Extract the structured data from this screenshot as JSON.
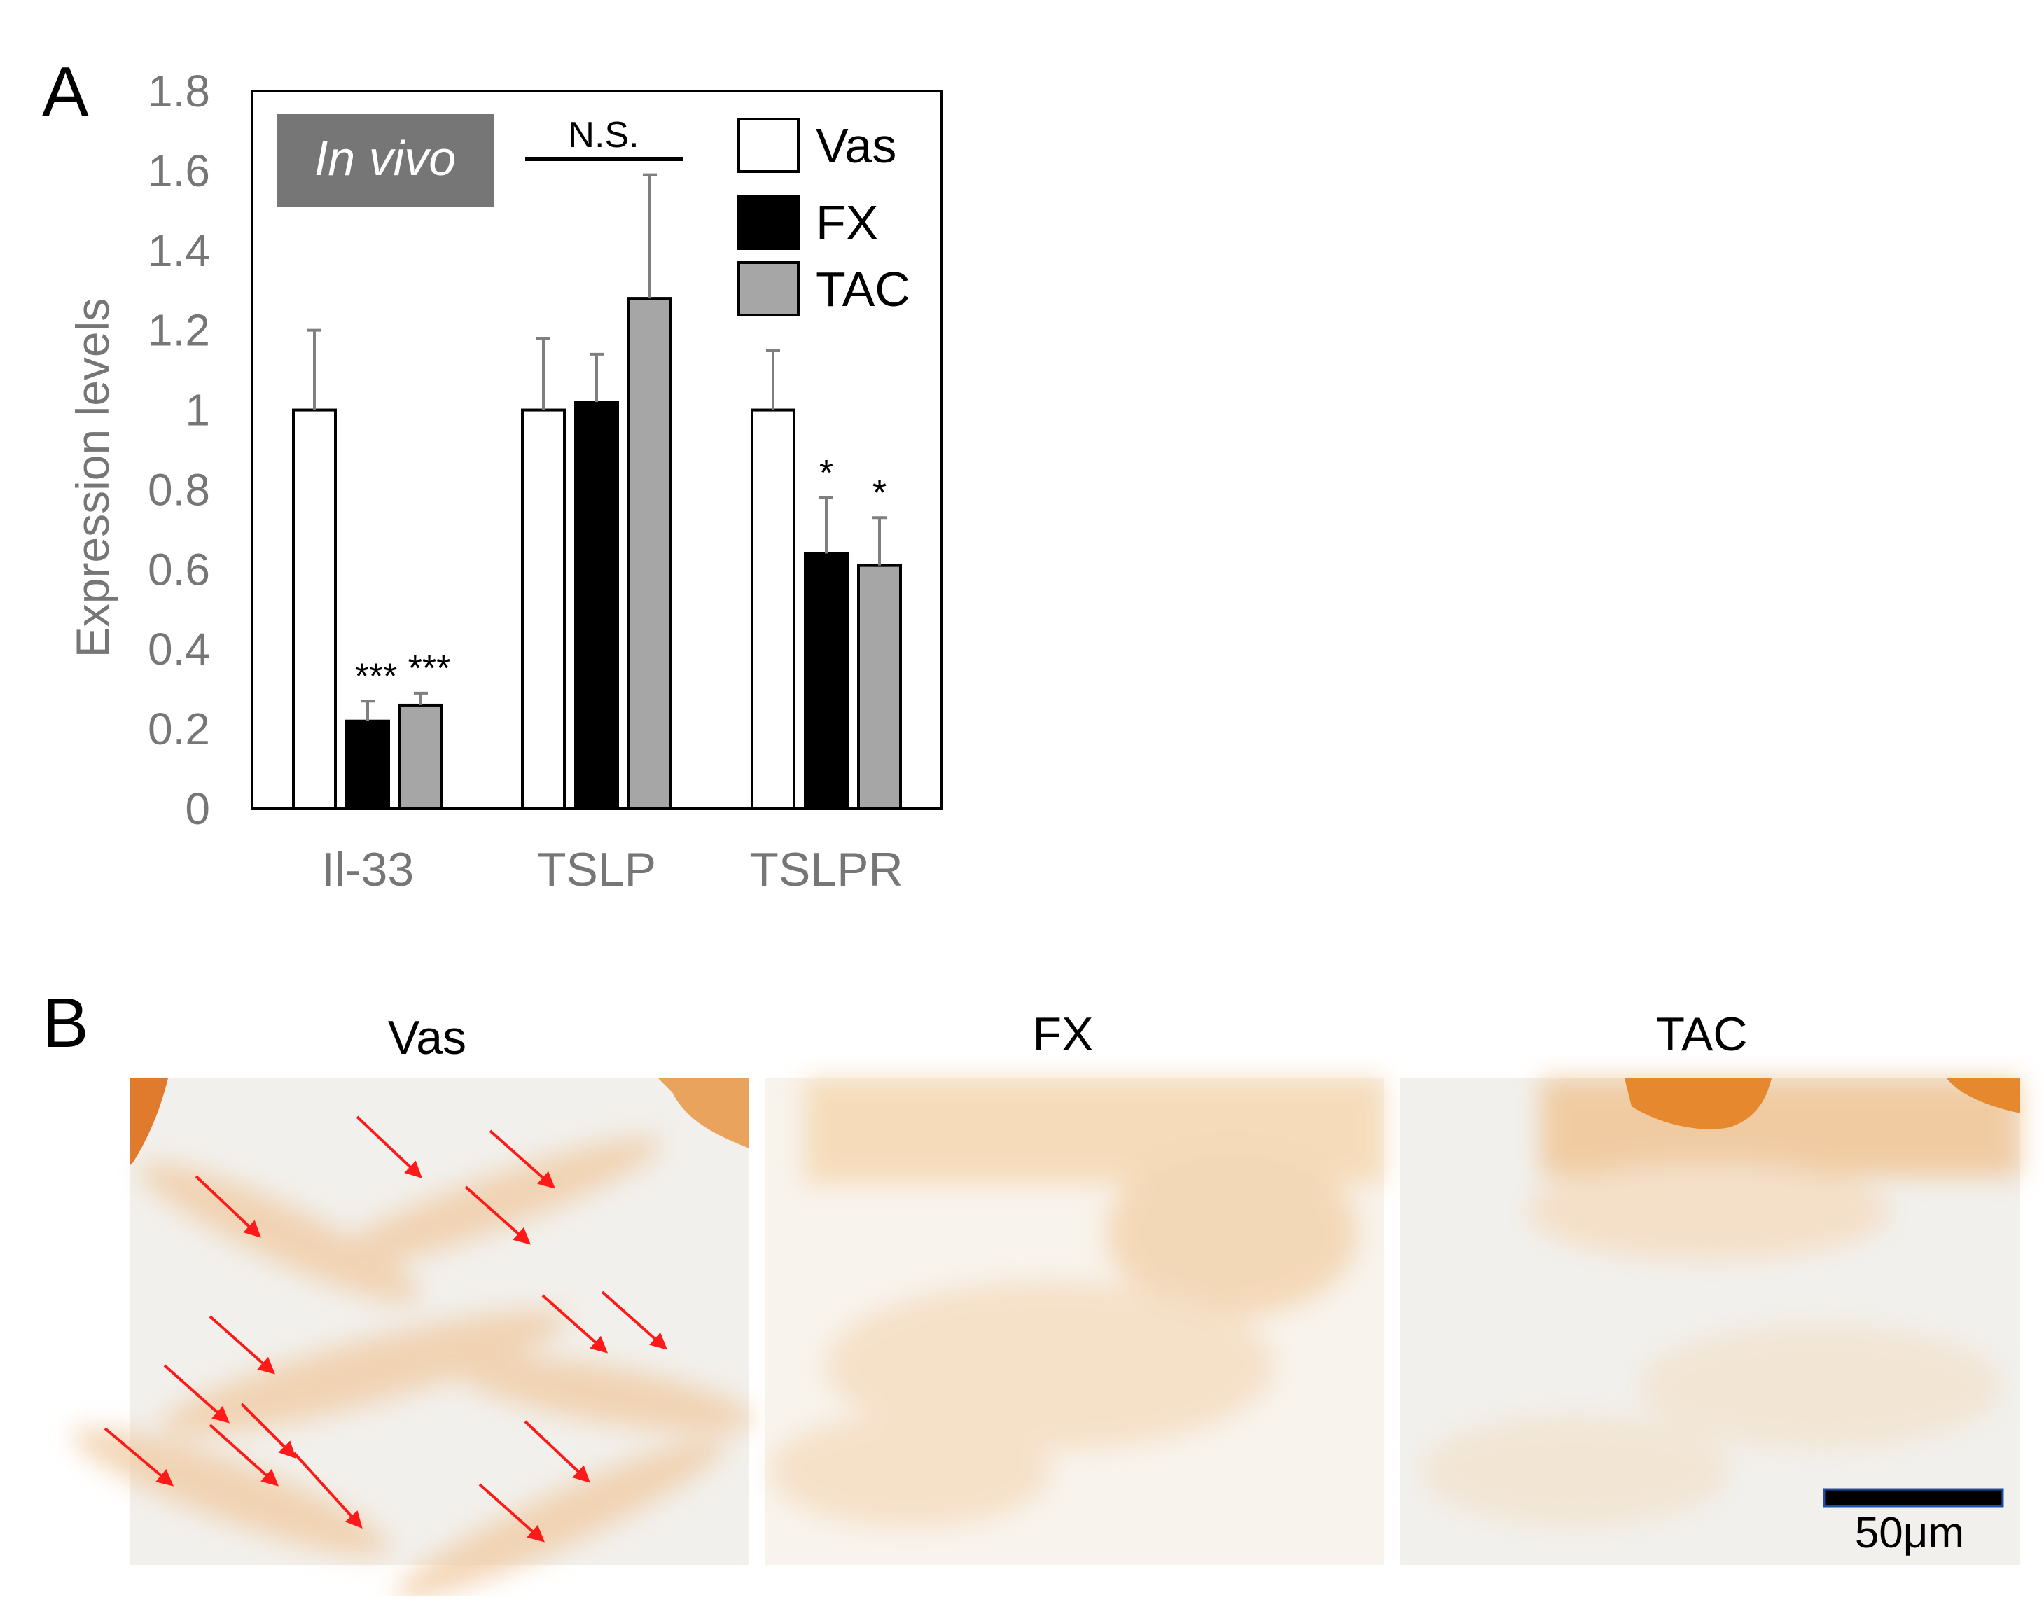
{
  "panel_a": {
    "label": "A",
    "badge": "In vivo",
    "significance_bracket": "N.S."
  },
  "panel_b": {
    "label": "B",
    "titles": [
      "Vas",
      "FX",
      "TAC"
    ],
    "scale_bar": "50μm"
  },
  "colors": {
    "vas": "#ffffff",
    "fx": "#000000",
    "tac": "#a6a6a6",
    "axis_text": "#767676",
    "badge_bg": "#767676",
    "arrow": "#ff1a1a",
    "stain": "#e89a4e"
  },
  "chart_data": {
    "type": "bar",
    "title": "",
    "xlabel": "",
    "ylabel": "Expression levels",
    "ylim": [
      0,
      1.8
    ],
    "yticks": [
      "0",
      "0.2",
      "0.4",
      "0.6",
      "0.8",
      "1",
      "1.2",
      "1.4",
      "1.6",
      "1.8"
    ],
    "categories": [
      "Il-33",
      "TSLP",
      "TSLPR"
    ],
    "legend_position": "top-right",
    "grid": false,
    "series": [
      {
        "name": "Vas",
        "values": [
          1.0,
          1.0,
          1.0
        ],
        "errors": [
          0.2,
          0.18,
          0.15
        ],
        "stars": [
          "",
          "",
          ""
        ]
      },
      {
        "name": "FX",
        "values": [
          0.22,
          1.02,
          0.64
        ],
        "errors": [
          0.05,
          0.12,
          0.14
        ],
        "stars": [
          "***",
          "",
          "*"
        ]
      },
      {
        "name": "TAC",
        "values": [
          0.26,
          1.28,
          0.61
        ],
        "errors": [
          0.03,
          0.31,
          0.12
        ],
        "stars": [
          "***",
          "",
          "*"
        ]
      }
    ]
  }
}
